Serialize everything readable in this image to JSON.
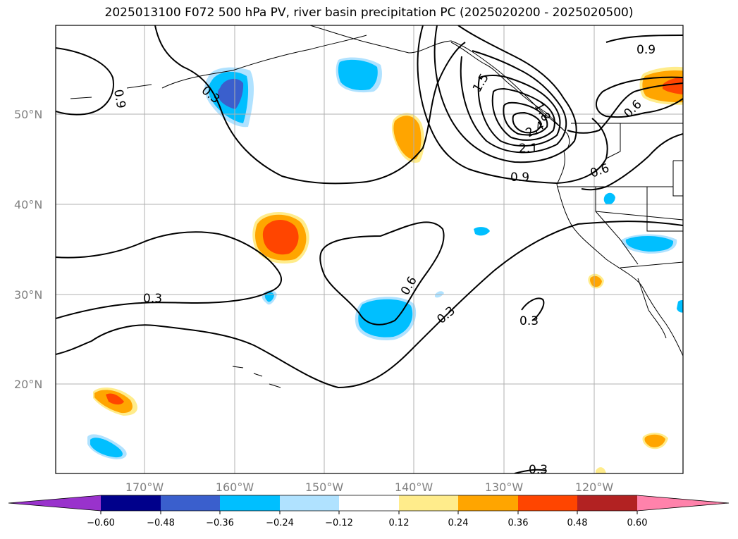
{
  "title": "2025013100 F072 500 hPa PV, river basin precipitation PC (2025020200 - 2025020500)",
  "map": {
    "lat_labels": [
      "50°N",
      "40°N",
      "30°N",
      "20°N"
    ],
    "lon_labels": [
      "170°W",
      "160°W",
      "150°W",
      "140°W",
      "130°W",
      "120°W"
    ],
    "contour_labels": [
      "0.9",
      "0.3",
      "0.9",
      "0.6",
      "1.5",
      "2.4",
      "2.1",
      "1.8",
      "0.9",
      "0.6",
      "0.3",
      "0.6",
      "0.3",
      "0.3",
      "0.3"
    ]
  },
  "colorbar": {
    "colors": {
      "extend_min": "#9932cc",
      "c1": "#00008b",
      "c2": "#3a5fcd",
      "c3": "#00bfff",
      "c4": "#b0e2ff",
      "c5": "#ffffff",
      "c6": "#ffec8b",
      "c7": "#ffa500",
      "c8": "#ff4500",
      "c9": "#b22222",
      "c10": "#ff82ab",
      "extend_max": "#ff82ab"
    },
    "tick_labels": [
      "−0.60",
      "−0.48",
      "−0.36",
      "−0.24",
      "−0.12",
      "0.12",
      "0.24",
      "0.36",
      "0.48",
      "0.60"
    ]
  },
  "legend_icons": {
    "coastline": "coastline-icon"
  }
}
